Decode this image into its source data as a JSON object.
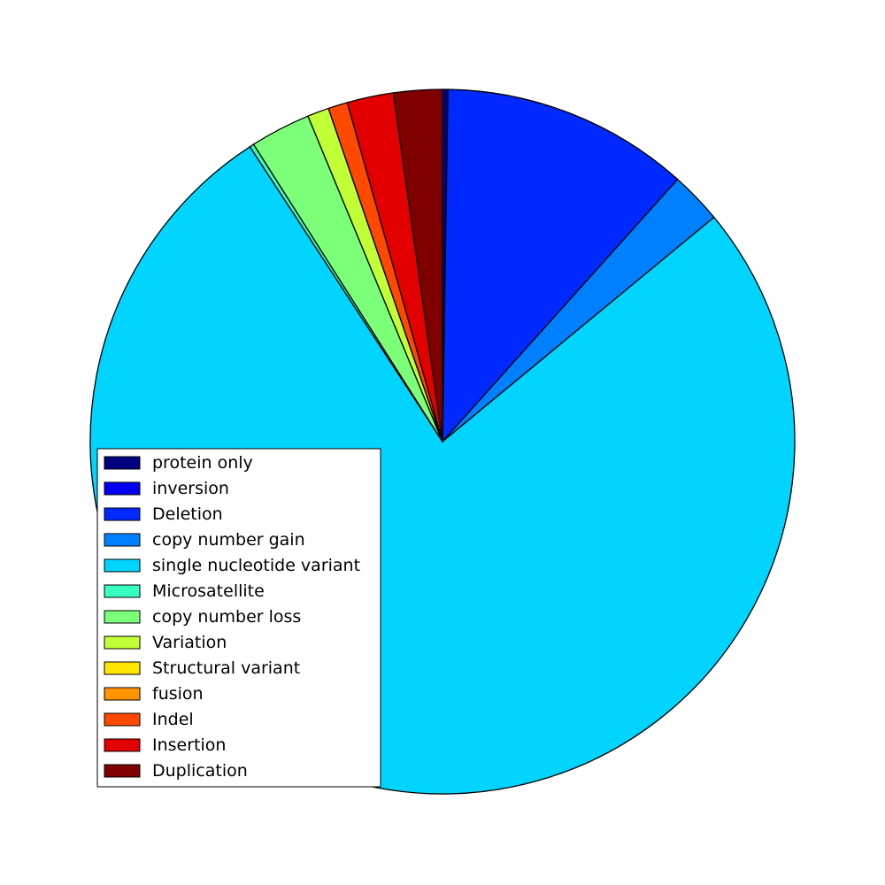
{
  "chart_data": {
    "type": "pie",
    "title": "",
    "start_angle_deg": 90,
    "direction": "clockwise",
    "legend_placement": "lower-left",
    "slices": [
      {
        "label": "protein only",
        "value": 0.25,
        "color": "#000080"
      },
      {
        "label": "inversion",
        "value": 0.0,
        "color": "#0000f1"
      },
      {
        "label": "Deletion",
        "value": 11.5,
        "color": "#0029ff"
      },
      {
        "label": "copy number gain",
        "value": 2.4,
        "color": "#0080ff"
      },
      {
        "label": "single nucleotide variant",
        "value": 77.55,
        "color": "#00d4ff"
      },
      {
        "label": "Microsatellite",
        "value": 0.2,
        "color": "#36ffc1"
      },
      {
        "label": "copy number loss",
        "value": 2.8,
        "color": "#7cff79"
      },
      {
        "label": "Variation",
        "value": 1.0,
        "color": "#c1ff36"
      },
      {
        "label": "Structural variant",
        "value": 0.0,
        "color": "#ffe600"
      },
      {
        "label": "fusion",
        "value": 0.0,
        "color": "#ff9400"
      },
      {
        "label": "Indel",
        "value": 0.9,
        "color": "#ff4800"
      },
      {
        "label": "Insertion",
        "value": 2.15,
        "color": "#e30000"
      },
      {
        "label": "Duplication",
        "value": 2.25,
        "color": "#800000"
      }
    ]
  }
}
